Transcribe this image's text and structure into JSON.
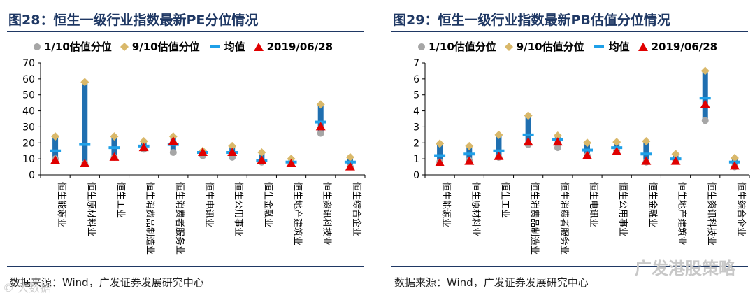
{
  "left": {
    "title": "图28：恒生一级行业指数最新PE分位情况",
    "source": "数据来源：Wind，广发证券发展研究中心",
    "legend": [
      "1/10估值分位",
      "9/10估值分位",
      "均值",
      "2019/06/28"
    ],
    "colors": {
      "p10": "#a6a6a6",
      "p90": "#d9b86a",
      "mean": "#1fa0e8",
      "latest": "#e00000",
      "bar": "#1f6fb0"
    }
  },
  "right": {
    "title": "图29：恒生一级行业指数最新PB估值分位情况",
    "source": "数据来源：Wind，广发证券发展研究中心",
    "legend": [
      "1/10估值分位",
      "9/10估值分位",
      "均值",
      "2019/06/28"
    ],
    "watermark": "广发港股策略"
  },
  "watermark_left": "© 大数据",
  "chart_data": [
    {
      "type": "scatter",
      "title": "图28：恒生一级行业指数最新PE分位情况",
      "categories": [
        "恒生能源业",
        "恒生原材料业",
        "恒生工业",
        "恒生消费品制造业",
        "恒生消费者服务业",
        "恒生电讯业",
        "恒生公用事业",
        "恒生金融业",
        "恒生地产建筑业",
        "恒生资讯科技业",
        "恒生综合企业"
      ],
      "ylim": [
        0,
        70
      ],
      "yticks": [
        "0",
        "10",
        "20",
        "30",
        "40",
        "50",
        "60",
        "70"
      ],
      "series": [
        {
          "name": "1/10估值分位",
          "values": [
            10,
            7,
            11,
            16,
            14,
            12,
            11,
            8,
            7,
            26,
            5
          ]
        },
        {
          "name": "9/10估值分位",
          "values": [
            24,
            58,
            24,
            21,
            24,
            15,
            18,
            14,
            10,
            44,
            11
          ]
        },
        {
          "name": "均值",
          "values": [
            15,
            19,
            17,
            18,
            19,
            14,
            14,
            9,
            8,
            33,
            8
          ]
        },
        {
          "name": "2019/06/28",
          "values": [
            9,
            7,
            11,
            17,
            21,
            14,
            14,
            9,
            7,
            30,
            5
          ]
        }
      ]
    },
    {
      "type": "scatter",
      "title": "图29：恒生一级行业指数最新PB估值分位情况",
      "categories": [
        "恒生能源业",
        "恒生原材料业",
        "恒生工业",
        "恒生消费品制造业",
        "恒生消费者服务业",
        "恒生电讯业",
        "恒生公用事业",
        "恒生金融业",
        "恒生地产建筑业",
        "恒生资讯科技业",
        "恒生综合企业"
      ],
      "ylim": [
        0,
        7
      ],
      "yticks": [
        "0",
        "1",
        "2",
        "3",
        "4",
        "5",
        "6",
        "7"
      ],
      "series": [
        {
          "name": "1/10估值分位",
          "values": [
            0.8,
            0.9,
            1.1,
            1.9,
            1.7,
            1.2,
            1.5,
            0.8,
            0.9,
            3.4,
            0.5
          ]
        },
        {
          "name": "9/10估值分位",
          "values": [
            1.95,
            1.8,
            2.5,
            3.7,
            2.45,
            2.0,
            2.05,
            2.1,
            1.3,
            6.5,
            1.05
          ]
        },
        {
          "name": "均值",
          "values": [
            1.2,
            1.3,
            1.5,
            2.5,
            2.2,
            1.55,
            1.7,
            1.3,
            1.0,
            4.8,
            0.8
          ]
        },
        {
          "name": "2019/06/28",
          "values": [
            0.75,
            0.85,
            1.15,
            2.05,
            2.05,
            1.2,
            1.45,
            0.85,
            0.85,
            4.4,
            0.55
          ]
        }
      ]
    }
  ]
}
